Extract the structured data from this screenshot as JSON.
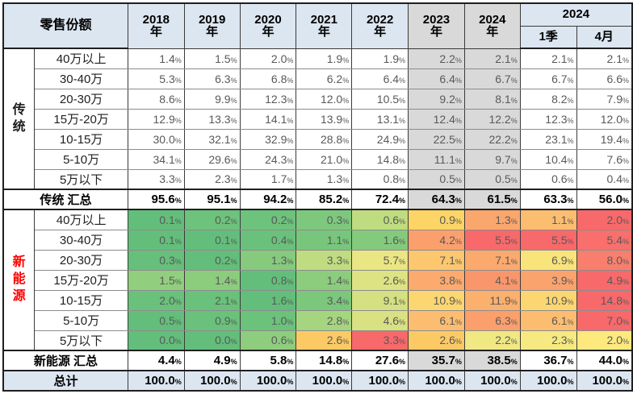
{
  "palette": {
    "header_bg": "#dce6f1",
    "gray_column_bg": "#d9d9d9",
    "total_row_bg": "#dce6f1",
    "value_text": "#595959",
    "label_text": "#1f1f1f",
    "nev_label_color": "#fe0000",
    "trad_label_color": "#1a1a1a",
    "scale_min_green": "#63be7b",
    "scale_mid_yellow": "#ffeb84",
    "scale_max_red": "#f8696b"
  },
  "chart_data": {
    "type": "table",
    "title": "零售份额",
    "header": {
      "corner": "零售份额",
      "years": [
        {
          "line1": "2018",
          "line2": "年"
        },
        {
          "line1": "2019",
          "line2": "年"
        },
        {
          "line1": "2020",
          "line2": "年"
        },
        {
          "line1": "2021",
          "line2": "年"
        },
        {
          "line1": "2022",
          "line2": "年"
        },
        {
          "line1": "2023",
          "line2": "年"
        },
        {
          "line1": "2024",
          "line2": "年"
        }
      ],
      "group_2024": {
        "title": "2024",
        "subs": [
          "1季",
          "4月"
        ]
      }
    },
    "columns": [
      "2018年",
      "2019年",
      "2020年",
      "2021年",
      "2022年",
      "2023年",
      "2024年",
      "2024 1季",
      "2024 4月"
    ],
    "gray_column_indices": [
      5,
      6
    ],
    "sections": [
      {
        "id": "trad",
        "label": "传统",
        "label_color": "#1a1a1a",
        "rows": [
          {
            "label": "40万以上",
            "values": [
              "1.4%",
              "1.5%",
              "2.0%",
              "1.9%",
              "1.9%",
              "2.2%",
              "2.1%",
              "2.1%",
              "2.1%"
            ]
          },
          {
            "label": "30-40万",
            "values": [
              "5.3%",
              "6.3%",
              "6.8%",
              "6.2%",
              "6.4%",
              "6.4%",
              "6.7%",
              "6.7%",
              "6.6%"
            ]
          },
          {
            "label": "20-30万",
            "values": [
              "8.6%",
              "9.9%",
              "12.3%",
              "12.0%",
              "10.5%",
              "9.2%",
              "8.1%",
              "8.2%",
              "7.9%"
            ]
          },
          {
            "label": "15万-20万",
            "values": [
              "12.9%",
              "13.3%",
              "14.1%",
              "13.9%",
              "13.1%",
              "12.4%",
              "12.2%",
              "12.3%",
              "12.0%"
            ]
          },
          {
            "label": "10-15万",
            "values": [
              "30.0%",
              "32.1%",
              "32.9%",
              "28.8%",
              "24.9%",
              "22.5%",
              "22.2%",
              "23.1%",
              "19.4%"
            ]
          },
          {
            "label": "5-10万",
            "values": [
              "34.1%",
              "29.6%",
              "24.3%",
              "21.0%",
              "14.8%",
              "11.1%",
              "9.7%",
              "10.4%",
              "7.6%"
            ]
          },
          {
            "label": "5万以下",
            "values": [
              "3.3%",
              "2.3%",
              "1.7%",
              "1.3%",
              "0.8%",
              "0.5%",
              "0.5%",
              "0.6%",
              "0.4%"
            ]
          }
        ],
        "summary": {
          "label": "传统 汇总",
          "values": [
            "95.6%",
            "95.1%",
            "94.2%",
            "85.2%",
            "72.4%",
            "64.3%",
            "61.5%",
            "63.3%",
            "56.0%"
          ]
        }
      },
      {
        "id": "nev",
        "label": "新能源",
        "label_color": "#fe0000",
        "rows": [
          {
            "label": "40万以上",
            "values": [
              "0.1%",
              "0.2%",
              "0.2%",
              "0.3%",
              "0.6%",
              "0.9%",
              "1.3%",
              "1.1%",
              "2.0%"
            ],
            "colors": [
              "#63be7b",
              "#6dc27c",
              "#6dc27c",
              "#7ec87d",
              "#c0dc80",
              "#fcd566",
              "#faa76e",
              "#fbbd70",
              "#f8696b"
            ]
          },
          {
            "label": "30-40万",
            "values": [
              "0.1%",
              "0.1%",
              "0.4%",
              "1.1%",
              "1.6%",
              "4.2%",
              "5.5%",
              "5.5%",
              "5.4%"
            ],
            "colors": [
              "#63be7b",
              "#63be7b",
              "#6ac17b",
              "#78c67c",
              "#83ca7d",
              "#fba06d",
              "#f8696b",
              "#f8696b",
              "#f86f6c"
            ]
          },
          {
            "label": "20-30万",
            "values": [
              "0.3%",
              "0.2%",
              "1.3%",
              "3.3%",
              "5.7%",
              "7.1%",
              "7.1%",
              "6.9%",
              "8.0%"
            ],
            "colors": [
              "#66bf7b",
              "#63be7b",
              "#85ca7d",
              "#c0dc80",
              "#eae683",
              "#fcc76f",
              "#fca96d",
              "#f9e47c",
              "#f87f6d"
            ]
          },
          {
            "label": "15万-20万",
            "values": [
              "1.5%",
              "1.4%",
              "0.8%",
              "1.4%",
              "2.6%",
              "3.8%",
              "4.1%",
              "3.9%",
              "4.9%"
            ],
            "colors": [
              "#91ce7e",
              "#8ccc7d",
              "#63be7b",
              "#8ccc7d",
              "#dde283",
              "#fcaa6d",
              "#fa966c",
              "#fba36d",
              "#f8696b"
            ]
          },
          {
            "label": "10-15万",
            "values": [
              "2.0%",
              "2.1%",
              "1.6%",
              "3.4%",
              "9.1%",
              "10.9%",
              "11.9%",
              "10.9%",
              "14.8%"
            ],
            "colors": [
              "#69c17b",
              "#6ac17b",
              "#63be7b",
              "#7bc77c",
              "#d4e081",
              "#fcd671",
              "#fbb06e",
              "#fcd671",
              "#f8696b"
            ]
          },
          {
            "label": "5-10万",
            "values": [
              "0.5%",
              "0.9%",
              "1.0%",
              "2.8%",
              "4.6%",
              "6.1%",
              "6.3%",
              "6.1%",
              "7.0%"
            ],
            "colors": [
              "#63be7b",
              "#69c17b",
              "#6bc27b",
              "#a5d57f",
              "#dae182",
              "#fcbd70",
              "#fb9f6c",
              "#fcbd70",
              "#f8696b"
            ]
          },
          {
            "label": "5万以下",
            "values": [
              "0.0%",
              "0.0%",
              "0.6%",
              "2.6%",
              "3.3%",
              "2.6%",
              "2.2%",
              "2.3%",
              "2.0%"
            ],
            "colors": [
              "#63be7b",
              "#63be7b",
              "#8ecd7e",
              "#fcca65",
              "#f8696b",
              "#fcca65",
              "#f0e883",
              "#f6e981",
              "#fde97e"
            ]
          }
        ],
        "summary": {
          "label": "新能源 汇总",
          "values": [
            "4.4%",
            "4.9%",
            "5.8%",
            "14.8%",
            "27.6%",
            "35.7%",
            "38.5%",
            "36.7%",
            "44.0%"
          ]
        }
      }
    ],
    "total_row": {
      "label": "总计",
      "values": [
        "100.0%",
        "100.0%",
        "100.0%",
        "100.0%",
        "100.0%",
        "100.0%",
        "100.0%",
        "100.0%",
        "100.0%"
      ]
    }
  }
}
